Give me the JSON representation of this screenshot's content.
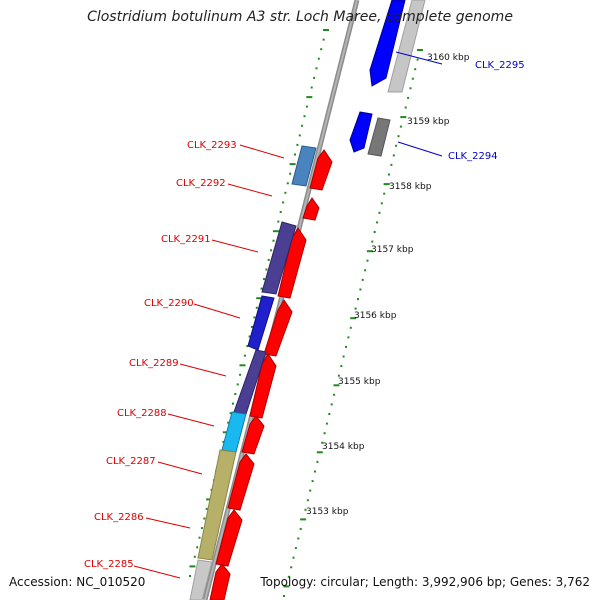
{
  "title": "Clostridium botulinum A3 str. Loch Maree, complete genome",
  "accession": "Accession: NC_010520",
  "topology": "Topology: circular; Length: 3,992,906 bp; Genes: 3,762",
  "colors": {
    "forward_cds": "#ff0000",
    "reverse_cds": "#0000ff",
    "label_red": "#dd0000",
    "label_blue": "#0000cc",
    "tick": "#1f8a1f",
    "backbone": "#8c8c8c"
  },
  "kbp_labels": [
    "3160 kbp",
    "3159 kbp",
    "3158 kbp",
    "3157 kbp",
    "3156 kbp",
    "3155 kbp",
    "3154 kbp",
    "3153 kbp"
  ],
  "gene_labels": [
    {
      "name": "CLK_2295",
      "strand": "reverse"
    },
    {
      "name": "CLK_2294",
      "strand": "reverse"
    },
    {
      "name": "CLK_2293",
      "strand": "forward"
    },
    {
      "name": "CLK_2292",
      "strand": "forward"
    },
    {
      "name": "CLK_2291",
      "strand": "forward"
    },
    {
      "name": "CLK_2290",
      "strand": "forward"
    },
    {
      "name": "CLK_2289",
      "strand": "forward"
    },
    {
      "name": "CLK_2288",
      "strand": "forward"
    },
    {
      "name": "CLK_2287",
      "strand": "forward"
    },
    {
      "name": "CLK_2286",
      "strand": "forward"
    },
    {
      "name": "CLK_2285",
      "strand": "forward"
    }
  ]
}
